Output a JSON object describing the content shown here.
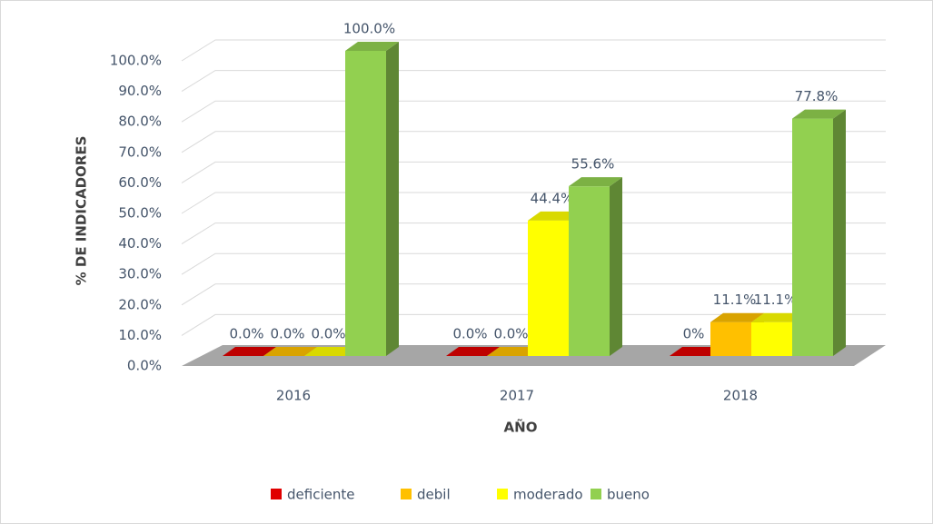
{
  "chart_data": {
    "type": "bar3d",
    "categories": [
      "2016",
      "2017",
      "2018"
    ],
    "series": [
      {
        "name": "deficiente",
        "color": "#e00000",
        "values": [
          0,
          0,
          0
        ],
        "value_labels": [
          "0.0%",
          "0.0%",
          "0%"
        ]
      },
      {
        "name": "debil",
        "color": "#ffc000",
        "values": [
          0,
          0,
          11.1
        ],
        "value_labels": [
          "0.0%",
          "0.0%",
          "11.1%"
        ]
      },
      {
        "name": "moderado",
        "color": "#ffff00",
        "values": [
          0,
          44.4,
          11.1
        ],
        "value_labels": [
          "0.0%",
          "44.4%",
          "11.1%"
        ]
      },
      {
        "name": "bueno",
        "color": "#92d050",
        "values": [
          100,
          55.6,
          77.8
        ],
        "value_labels": [
          "100.0%",
          "55.6%",
          "77.8%"
        ]
      }
    ],
    "ylim": [
      0,
      100
    ],
    "yticks": [
      {
        "value": 0,
        "label": "0.0%"
      },
      {
        "value": 10,
        "label": "10.0%"
      },
      {
        "value": 20,
        "label": "20.0%"
      },
      {
        "value": 30,
        "label": "30.0%"
      },
      {
        "value": 40,
        "label": "40.0%"
      },
      {
        "value": 50,
        "label": "50.0%"
      },
      {
        "value": 60,
        "label": "60.0%"
      },
      {
        "value": 70,
        "label": "70.0%"
      },
      {
        "value": 80,
        "label": "80.0%"
      },
      {
        "value": 90,
        "label": "90.0%"
      },
      {
        "value": 100,
        "label": "100.0%"
      }
    ],
    "xlabel": "AÑO",
    "ylabel": "%  DE INDICADORES",
    "grid": true,
    "legend": "bottom"
  }
}
